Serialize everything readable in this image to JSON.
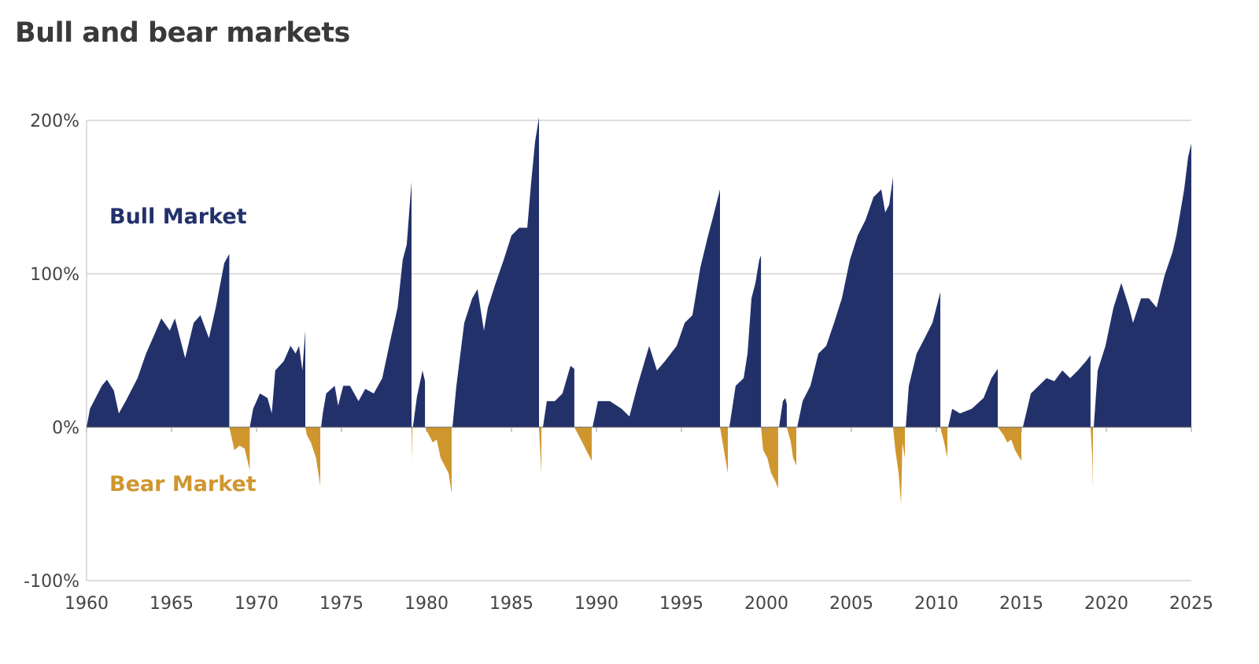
{
  "title": "Bull and bear markets",
  "chart_data": {
    "type": "area",
    "title": "Bull and bear markets",
    "xlabel": "",
    "ylabel": "",
    "xlim": [
      1960,
      2025
    ],
    "ylim": [
      -100,
      200
    ],
    "x_ticks": [
      "1960",
      "1965",
      "1970",
      "1975",
      "1980",
      "1985",
      "1990",
      "1995",
      "2000",
      "2005",
      "2010",
      "2015",
      "2020",
      "2025"
    ],
    "y_ticks": [
      "200%",
      "100%",
      "0%",
      "-100%"
    ],
    "grid": "horizontal",
    "annotations": {
      "bull": "Bull Market",
      "bear": "Bear Market"
    },
    "colors": {
      "bull": "#23316b",
      "bear": "#d0962e"
    },
    "segments": [
      {
        "kind": "bull",
        "points": [
          [
            1960,
            0
          ],
          [
            1960.2,
            12
          ],
          [
            1960.9,
            27
          ],
          [
            1961.2,
            31
          ],
          [
            1961.6,
            24
          ],
          [
            1961.9,
            9
          ],
          [
            1962.3,
            17
          ],
          [
            1963.0,
            32
          ],
          [
            1963.5,
            48
          ],
          [
            1963.9,
            58
          ],
          [
            1964.4,
            71
          ],
          [
            1964.9,
            63
          ],
          [
            1965.2,
            71
          ],
          [
            1965.8,
            45
          ],
          [
            1966.3,
            68
          ],
          [
            1966.7,
            73
          ],
          [
            1967.2,
            58
          ],
          [
            1967.6,
            78
          ],
          [
            1968.1,
            107
          ],
          [
            1968.4,
            113
          ]
        ]
      },
      {
        "kind": "bear",
        "points": [
          [
            1968.4,
            0
          ],
          [
            1968.7,
            -15
          ],
          [
            1969.0,
            -12
          ],
          [
            1969.3,
            -14
          ],
          [
            1969.6,
            -28
          ]
        ]
      },
      {
        "kind": "bull",
        "points": [
          [
            1969.6,
            0
          ],
          [
            1969.8,
            12
          ],
          [
            1970.2,
            22
          ],
          [
            1970.65,
            19
          ],
          [
            1970.9,
            9
          ],
          [
            1971.1,
            37
          ],
          [
            1971.6,
            43
          ],
          [
            1972.0,
            53
          ],
          [
            1972.3,
            48
          ],
          [
            1972.5,
            53
          ],
          [
            1972.7,
            37
          ],
          [
            1972.87,
            63
          ]
        ]
      },
      {
        "kind": "bear",
        "points": [
          [
            1972.87,
            0
          ],
          [
            1972.96,
            -5
          ],
          [
            1973.2,
            -10
          ],
          [
            1973.5,
            -20
          ],
          [
            1973.75,
            -38
          ]
        ]
      },
      {
        "kind": "bull",
        "points": [
          [
            1973.8,
            0
          ],
          [
            1973.9,
            9
          ],
          [
            1974.1,
            22
          ],
          [
            1974.6,
            27
          ],
          [
            1974.8,
            14
          ],
          [
            1975.1,
            27
          ],
          [
            1975.5,
            27
          ],
          [
            1976.0,
            17
          ],
          [
            1976.4,
            25
          ],
          [
            1976.9,
            22
          ],
          [
            1977.4,
            32
          ],
          [
            1977.8,
            53
          ],
          [
            1978.3,
            78
          ],
          [
            1978.6,
            109
          ],
          [
            1978.84,
            119
          ],
          [
            1978.98,
            140
          ],
          [
            1979.12,
            160
          ]
        ]
      },
      {
        "kind": "bear",
        "points": [
          [
            1979.12,
            0
          ],
          [
            1979.17,
            -22
          ]
        ]
      },
      {
        "kind": "bull",
        "points": [
          [
            1979.2,
            0
          ],
          [
            1979.44,
            20
          ],
          [
            1979.77,
            37
          ],
          [
            1979.91,
            30
          ]
        ]
      },
      {
        "kind": "bear",
        "points": [
          [
            1979.91,
            0
          ],
          [
            1980.14,
            -5
          ],
          [
            1980.37,
            -10
          ],
          [
            1980.6,
            -8
          ],
          [
            1980.83,
            -20
          ],
          [
            1981.3,
            -30
          ],
          [
            1981.48,
            -43
          ]
        ]
      },
      {
        "kind": "bull",
        "points": [
          [
            1981.53,
            0
          ],
          [
            1981.76,
            27
          ],
          [
            1982.22,
            68
          ],
          [
            1982.69,
            84
          ],
          [
            1983.0,
            90
          ],
          [
            1983.38,
            63
          ],
          [
            1983.61,
            78
          ],
          [
            1984.07,
            94
          ],
          [
            1984.54,
            109
          ],
          [
            1985.0,
            125
          ],
          [
            1985.46,
            130
          ],
          [
            1985.93,
            130
          ],
          [
            1986.16,
            160
          ],
          [
            1986.39,
            186
          ],
          [
            1986.62,
            202
          ]
        ]
      },
      {
        "kind": "bear",
        "points": [
          [
            1986.62,
            0
          ],
          [
            1986.76,
            -30
          ]
        ]
      },
      {
        "kind": "bull",
        "points": [
          [
            1986.85,
            0
          ],
          [
            1987.08,
            17
          ],
          [
            1987.55,
            17
          ],
          [
            1988.0,
            22
          ],
          [
            1988.47,
            40
          ],
          [
            1988.7,
            38
          ]
        ]
      },
      {
        "kind": "bear",
        "points": [
          [
            1988.7,
            0
          ],
          [
            1989.17,
            -10
          ],
          [
            1989.4,
            -15
          ],
          [
            1989.72,
            -22
          ]
        ]
      },
      {
        "kind": "bull",
        "points": [
          [
            1989.77,
            0
          ],
          [
            1990.09,
            17
          ],
          [
            1990.79,
            17
          ],
          [
            1991.48,
            12
          ],
          [
            1991.94,
            7
          ],
          [
            1992.41,
            27
          ],
          [
            1993.1,
            53
          ],
          [
            1993.56,
            37
          ],
          [
            1994.03,
            43
          ],
          [
            1994.72,
            53
          ],
          [
            1995.19,
            68
          ],
          [
            1995.65,
            73
          ],
          [
            1996.11,
            104
          ],
          [
            1996.57,
            125
          ],
          [
            1996.81,
            135
          ],
          [
            1997.04,
            145
          ],
          [
            1997.27,
            155
          ]
        ]
      },
      {
        "kind": "bear",
        "points": [
          [
            1997.27,
            0
          ],
          [
            1997.5,
            -15
          ],
          [
            1997.73,
            -30
          ]
        ]
      },
      {
        "kind": "bull",
        "points": [
          [
            1997.82,
            0
          ],
          [
            1998.19,
            27
          ],
          [
            1998.66,
            32
          ],
          [
            1998.89,
            48
          ],
          [
            1999.12,
            84
          ],
          [
            1999.35,
            94
          ],
          [
            1999.58,
            109
          ],
          [
            1999.68,
            112
          ]
        ]
      },
      {
        "kind": "bear",
        "points": [
          [
            1999.68,
            0
          ],
          [
            1999.81,
            -15
          ],
          [
            2000.05,
            -20
          ],
          [
            2000.28,
            -30
          ],
          [
            2000.51,
            -35
          ],
          [
            2000.69,
            -40
          ]
        ]
      },
      {
        "kind": "bull",
        "points": [
          [
            2000.74,
            0
          ],
          [
            2000.97,
            17
          ],
          [
            2001.11,
            19
          ],
          [
            2001.2,
            15
          ]
        ]
      },
      {
        "kind": "bear",
        "points": [
          [
            2001.2,
            0
          ],
          [
            2001.44,
            -10
          ],
          [
            2001.57,
            -20
          ],
          [
            2001.76,
            -25
          ]
        ]
      },
      {
        "kind": "bull",
        "points": [
          [
            2001.81,
            0
          ],
          [
            2002.13,
            17
          ],
          [
            2002.59,
            27
          ],
          [
            2003.06,
            48
          ],
          [
            2003.52,
            53
          ],
          [
            2003.98,
            68
          ],
          [
            2004.44,
            84
          ],
          [
            2004.91,
            109
          ],
          [
            2005.37,
            125
          ],
          [
            2005.83,
            135
          ],
          [
            2006.3,
            150
          ],
          [
            2006.76,
            155
          ],
          [
            2006.99,
            140
          ],
          [
            2007.22,
            145
          ],
          [
            2007.45,
            163
          ]
        ]
      },
      {
        "kind": "bear",
        "points": [
          [
            2007.45,
            0
          ],
          [
            2007.59,
            -15
          ],
          [
            2007.78,
            -30
          ],
          [
            2007.92,
            -50
          ],
          [
            2008.0,
            -10
          ],
          [
            2008.15,
            -20
          ]
        ]
      },
      {
        "kind": "bull",
        "points": [
          [
            2008.2,
            0
          ],
          [
            2008.38,
            27
          ],
          [
            2008.84,
            48
          ],
          [
            2009.31,
            58
          ],
          [
            2009.77,
            68
          ],
          [
            2010.23,
            88
          ]
        ]
      },
      {
        "kind": "bear",
        "points": [
          [
            2010.23,
            0
          ],
          [
            2010.46,
            -10
          ],
          [
            2010.65,
            -20
          ]
        ]
      },
      {
        "kind": "bull",
        "points": [
          [
            2010.69,
            0
          ],
          [
            2010.93,
            12
          ],
          [
            2011.39,
            9
          ],
          [
            2012.08,
            12
          ],
          [
            2012.78,
            19
          ],
          [
            2013.24,
            32
          ],
          [
            2013.61,
            38
          ]
        ]
      },
      {
        "kind": "bear",
        "points": [
          [
            2013.61,
            0
          ],
          [
            2013.94,
            -5
          ],
          [
            2014.17,
            -10
          ],
          [
            2014.4,
            -8
          ],
          [
            2014.63,
            -15
          ],
          [
            2015.0,
            -22
          ]
        ]
      },
      {
        "kind": "bull",
        "points": [
          [
            2015.09,
            0
          ],
          [
            2015.56,
            22
          ],
          [
            2016.02,
            27
          ],
          [
            2016.48,
            32
          ],
          [
            2016.94,
            30
          ],
          [
            2017.41,
            37
          ],
          [
            2017.87,
            32
          ],
          [
            2018.33,
            37
          ],
          [
            2018.8,
            43
          ],
          [
            2019.07,
            47
          ]
        ]
      },
      {
        "kind": "bear",
        "points": [
          [
            2019.07,
            0
          ],
          [
            2019.17,
            -20
          ],
          [
            2019.21,
            -40
          ]
        ]
      },
      {
        "kind": "bull",
        "points": [
          [
            2019.26,
            0
          ],
          [
            2019.49,
            37
          ],
          [
            2019.95,
            53
          ],
          [
            2020.42,
            78
          ],
          [
            2020.88,
            94
          ],
          [
            2021.34,
            78
          ],
          [
            2021.57,
            68
          ],
          [
            2022.04,
            84
          ],
          [
            2022.5,
            84
          ],
          [
            2022.96,
            78
          ],
          [
            2023.43,
            99
          ],
          [
            2023.89,
            114
          ],
          [
            2024.12,
            125
          ],
          [
            2024.58,
            155
          ],
          [
            2024.81,
            176
          ],
          [
            2025,
            185
          ]
        ]
      }
    ]
  }
}
